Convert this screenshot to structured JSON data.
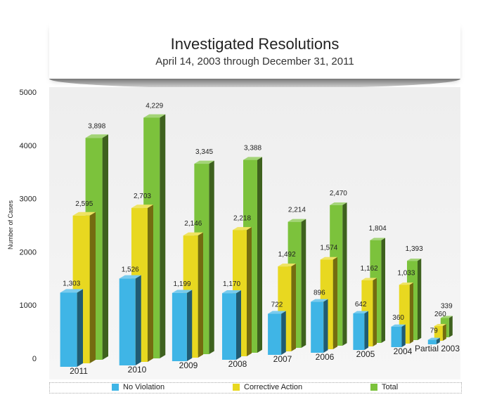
{
  "chart_data": {
    "type": "bar",
    "title": "Investigated Resolutions",
    "subtitle": "April 14, 2003 through December 31, 2011",
    "ylabel": "Number of Cases",
    "xlabel": "",
    "ylim": [
      0,
      5000
    ],
    "yticks": [
      "0",
      "1000",
      "2000",
      "3000",
      "4000",
      "5000"
    ],
    "categories": [
      "2011",
      "2010",
      "2009",
      "2008",
      "2007",
      "2006",
      "2005",
      "2004",
      "Partial 2003"
    ],
    "series": [
      {
        "name": "No Violation",
        "color": "#3fb5e6",
        "values": [
          1303,
          1526,
          1199,
          1170,
          722,
          896,
          642,
          360,
          79
        ],
        "labels": [
          "1,303",
          "1,526",
          "1,199",
          "1,170",
          "722",
          "896",
          "642",
          "360",
          "79"
        ]
      },
      {
        "name": "Corrective Action",
        "color": "#e8d820",
        "values": [
          2595,
          2703,
          2146,
          2218,
          1492,
          1574,
          1162,
          1033,
          260
        ],
        "labels": [
          "2,595",
          "2,703",
          "2,146",
          "2,218",
          "1,492",
          "1,574",
          "1,162",
          "1,033",
          "260"
        ]
      },
      {
        "name": "Total",
        "color": "#7cc23c",
        "values": [
          3898,
          4229,
          3345,
          3388,
          2214,
          2470,
          1804,
          1393,
          339
        ],
        "labels": [
          "3,898",
          "4,229",
          "3,345",
          "3,388",
          "2,214",
          "2,470",
          "1,804",
          "1,393",
          "339"
        ]
      }
    ],
    "grid": false,
    "legend": "bottom"
  }
}
